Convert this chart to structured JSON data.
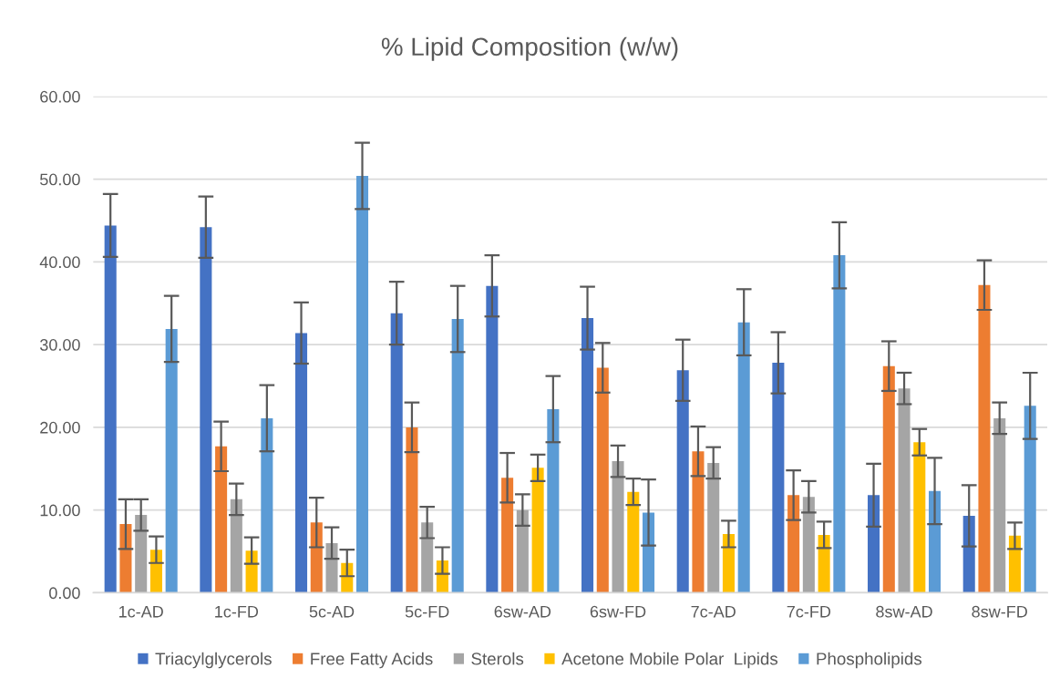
{
  "chart_data": {
    "type": "bar",
    "title": "% Lipid Composition (w/w)",
    "categories": [
      "1c-AD",
      "1c-FD",
      "5c-AD",
      "5c-FD",
      "6sw-AD",
      "6sw-FD",
      "7c-AD",
      "7c-FD",
      "8sw-AD",
      "8sw-FD"
    ],
    "series": [
      {
        "name": "Triacylglycerols",
        "color": "#4472c4",
        "values": [
          44.4,
          44.2,
          31.4,
          33.8,
          37.1,
          33.2,
          26.9,
          27.8,
          11.8,
          9.3
        ],
        "errors": [
          3.8,
          3.7,
          3.7,
          3.8,
          3.7,
          3.8,
          3.7,
          3.7,
          3.8,
          3.7
        ]
      },
      {
        "name": "Free Fatty Acids",
        "color": "#ed7d31",
        "values": [
          8.3,
          17.7,
          8.5,
          20.0,
          13.9,
          27.2,
          17.1,
          11.8,
          27.4,
          37.2
        ],
        "errors": [
          3.0,
          3.0,
          3.0,
          3.0,
          3.0,
          3.0,
          3.0,
          3.0,
          3.0,
          3.0
        ]
      },
      {
        "name": "Sterols",
        "color": "#a5a5a5",
        "values": [
          9.4,
          11.3,
          6.0,
          8.5,
          10.0,
          15.9,
          15.7,
          11.6,
          24.7,
          21.1
        ],
        "errors": [
          1.9,
          1.9,
          1.9,
          1.9,
          1.9,
          1.9,
          1.9,
          1.9,
          1.9,
          1.9
        ]
      },
      {
        "name": "Acetone Mobile Polar  Lipids",
        "color": "#ffc000",
        "values": [
          5.2,
          5.1,
          3.6,
          3.9,
          15.1,
          12.2,
          7.1,
          7.0,
          18.2,
          6.9
        ],
        "errors": [
          1.6,
          1.6,
          1.6,
          1.6,
          1.6,
          1.6,
          1.6,
          1.6,
          1.6,
          1.6
        ]
      },
      {
        "name": "Phospholipids",
        "color": "#5b9bd5",
        "values": [
          31.9,
          21.1,
          50.4,
          33.1,
          22.2,
          9.7,
          32.7,
          40.8,
          12.3,
          22.6
        ],
        "errors": [
          4.0,
          4.0,
          4.0,
          4.0,
          4.0,
          4.0,
          4.0,
          4.0,
          4.0,
          4.0
        ]
      }
    ],
    "ylim": [
      0,
      60
    ],
    "yticks": [
      {
        "value": 0,
        "label": "0.00"
      },
      {
        "value": 10,
        "label": "10.00"
      },
      {
        "value": 20,
        "label": "20.00"
      },
      {
        "value": 30,
        "label": "30.00"
      },
      {
        "value": 40,
        "label": "40.00"
      },
      {
        "value": 50,
        "label": "50.00"
      },
      {
        "value": 60,
        "label": "60.00"
      }
    ],
    "grid": "y",
    "legend": "bottom"
  }
}
